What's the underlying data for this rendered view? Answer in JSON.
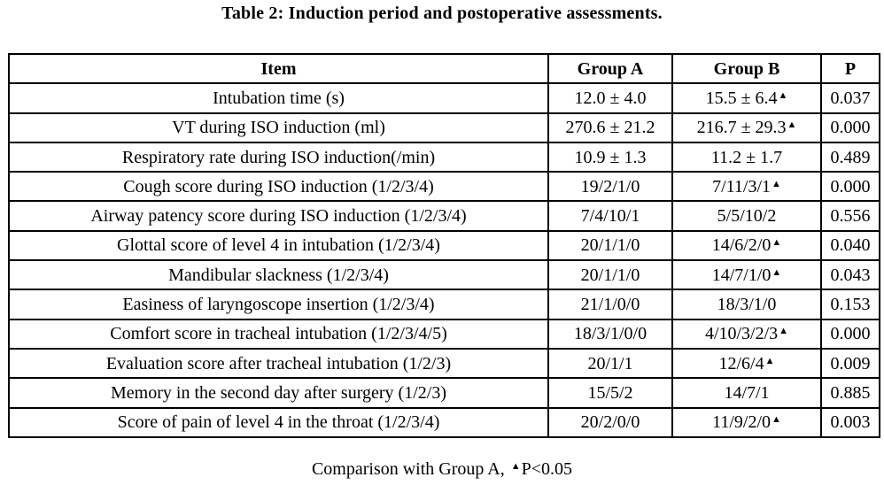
{
  "title": "Table 2: Induction period and postoperative assessments.",
  "table": {
    "headers": [
      "Item",
      "Group A",
      "Group B",
      "P"
    ],
    "rows": [
      {
        "item": "Intubation time (s)",
        "group_a": "12.0 ± 4.0",
        "group_b": "15.5 ± 6.4",
        "group_b_marked": true,
        "p": "0.037"
      },
      {
        "item": "VT during ISO induction (ml)",
        "group_a": "270.6 ± 21.2",
        "group_b": "216.7 ± 29.3",
        "group_b_marked": true,
        "p": "0.000"
      },
      {
        "item": "Respiratory rate during ISO induction(/min)",
        "group_a": "10.9 ± 1.3",
        "group_b": "11.2 ± 1.7",
        "group_b_marked": false,
        "p": "0.489"
      },
      {
        "item": "Cough score during ISO induction (1/2/3/4)",
        "group_a": "19/2/1/0",
        "group_b": "7/11/3/1",
        "group_b_marked": true,
        "p": "0.000"
      },
      {
        "item": "Airway patency score during ISO induction (1/2/3/4)",
        "group_a": "7/4/10/1",
        "group_b": "5/5/10/2",
        "group_b_marked": false,
        "p": "0.556"
      },
      {
        "item": "Glottal score of level 4 in intubation (1/2/3/4)",
        "group_a": "20/1/1/0",
        "group_b": "14/6/2/0",
        "group_b_marked": true,
        "p": "0.040"
      },
      {
        "item": "Mandibular slackness (1/2/3/4)",
        "group_a": "20/1/1/0",
        "group_b": "14/7/1/0",
        "group_b_marked": true,
        "p": "0.043"
      },
      {
        "item": "Easiness of laryngoscope insertion (1/2/3/4)",
        "group_a": "21/1/0/0",
        "group_b": "18/3/1/0",
        "group_b_marked": false,
        "p": "0.153"
      },
      {
        "item": "Comfort score in tracheal intubation (1/2/3/4/5)",
        "group_a": "18/3/1/0/0",
        "group_b": "4/10/3/2/3",
        "group_b_marked": true,
        "p": "0.000"
      },
      {
        "item": "Evaluation score after tracheal intubation (1/2/3)",
        "group_a": "20/1/1",
        "group_b": "12/6/4",
        "group_b_marked": true,
        "p": "0.009"
      },
      {
        "item": "Memory in the second day after surgery (1/2/3)",
        "group_a": "15/5/2",
        "group_b": "14/7/1",
        "group_b_marked": false,
        "p": "0.885"
      },
      {
        "item": "Score of pain of level 4 in the throat (1/2/3/4)",
        "group_a": "20/2/0/0",
        "group_b": "11/9/2/0",
        "group_b_marked": true,
        "p": "0.003"
      }
    ]
  },
  "footnote": {
    "prefix": "Comparison with Group A,",
    "marker_symbol": "▲",
    "suffix": "P<0.05"
  }
}
